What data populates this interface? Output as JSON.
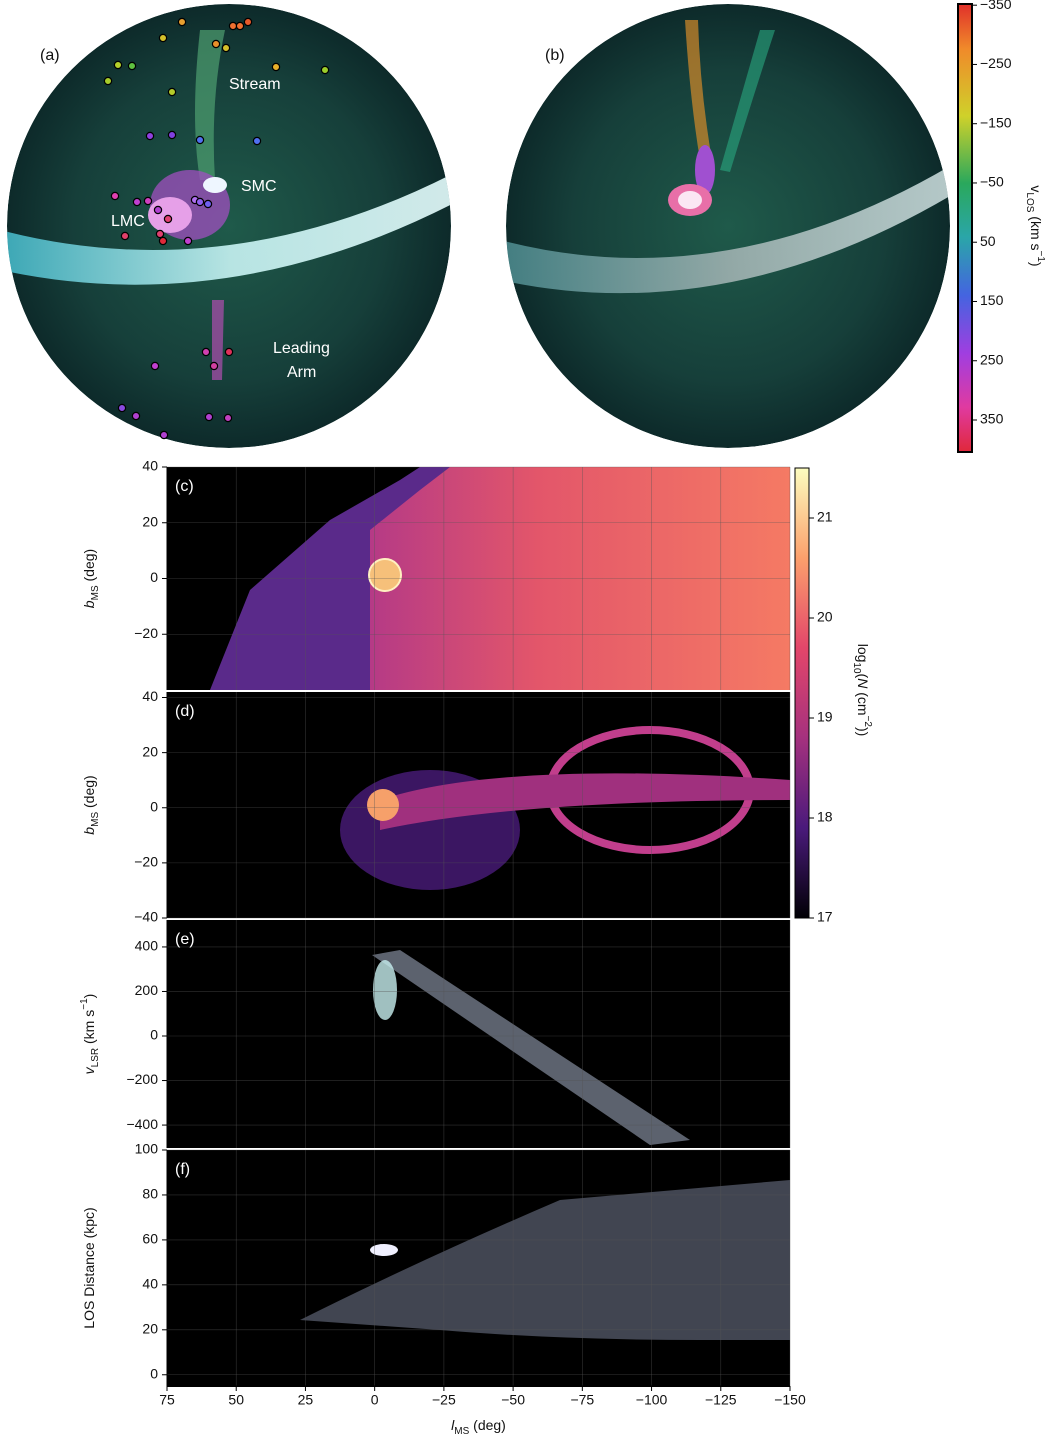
{
  "chart_data": [
    {
      "type": "sky",
      "panel": "(a)",
      "labels": [
        "Stream",
        "SMC",
        "LMC",
        "Leading",
        "Arm"
      ]
    },
    {
      "type": "sky",
      "panel": "(b)"
    },
    {
      "type": "colorbar",
      "colormap": "velocity",
      "ylim": [
        -352,
        404
      ],
      "yticks": [
        {
          "value": -350,
          "label": "−350"
        },
        {
          "value": -250,
          "label": "−250"
        },
        {
          "value": -150,
          "label": "−150"
        },
        {
          "value": -50,
          "label": "−50"
        },
        50,
        150,
        250,
        350
      ],
      "label": [
        {
          "text": "v",
          "style": "normal"
        },
        {
          "text": "LOS",
          "style": "sub"
        },
        {
          "text": "   (km s",
          "style": "normal"
        },
        {
          "text": "−1",
          "style": "sup"
        },
        {
          "text": ")",
          "style": "normal"
        }
      ]
    },
    {
      "type": "colorbar",
      "colormap": "magma",
      "ylim": [
        17,
        21.5
      ],
      "yticks": [
        17,
        18,
        19,
        20,
        21
      ],
      "label": [
        {
          "text": "log",
          "style": "normal"
        },
        {
          "text": "10",
          "style": "sub"
        },
        {
          "text": "(",
          "style": "normal"
        },
        {
          "text": "N",
          "style": "italic"
        },
        {
          "text": " (cm",
          "style": "normal"
        },
        {
          "text": "−2",
          "style": "sup"
        },
        {
          "text": "))",
          "style": "normal"
        }
      ]
    },
    {
      "type": "map",
      "panel": "(c)",
      "xlim": [
        75,
        -150
      ],
      "xticks": [
        75,
        50,
        25,
        0,
        -25,
        -50,
        -75,
        -100,
        -125,
        -150
      ],
      "ylim": [
        -40,
        40
      ],
      "yticks": [
        {
          "value": -20,
          "label": "−20"
        },
        0,
        20,
        40
      ],
      "grid": true,
      "ylabel": [
        {
          "text": "b",
          "style": "italic"
        },
        {
          "text": "MS",
          "style": "sub"
        },
        {
          "text": " (deg)",
          "style": "normal"
        }
      ]
    },
    {
      "type": "map",
      "panel": "(d)",
      "xlim": [
        75,
        -150
      ],
      "xticks": [
        75,
        50,
        25,
        0,
        -25,
        -50,
        -75,
        -100,
        -125,
        -150
      ],
      "ylim": [
        -40,
        42
      ],
      "yticks": [
        {
          "value": -40,
          "label": "−40"
        },
        {
          "value": -20,
          "label": "−20"
        },
        0,
        20,
        40
      ],
      "grid": true,
      "ylabel": [
        {
          "text": "b",
          "style": "italic"
        },
        {
          "text": "MS",
          "style": "sub"
        },
        {
          "text": " (deg)",
          "style": "normal"
        }
      ]
    },
    {
      "type": "map",
      "panel": "(e)",
      "xlim": [
        75,
        -150
      ],
      "xticks": [
        75,
        50,
        25,
        0,
        -25,
        -50,
        -75,
        -100,
        -125,
        -150
      ],
      "ylim": [
        -503,
        521
      ],
      "yticks": [
        {
          "value": -400,
          "label": "−400"
        },
        {
          "value": -200,
          "label": "−200"
        },
        0,
        200,
        400
      ],
      "grid": true,
      "ylabel": [
        {
          "text": "v",
          "style": "italic"
        },
        {
          "text": "LSR",
          "style": "sub"
        },
        {
          "text": " (km s",
          "style": "normal"
        },
        {
          "text": "−1",
          "style": "sup"
        },
        {
          "text": ")",
          "style": "normal"
        }
      ]
    },
    {
      "type": "map",
      "panel": "(f)",
      "xlim": [
        75,
        -150
      ],
      "xticks": [
        75,
        50,
        25,
        0,
        {
          "value": -25,
          "label": "−25"
        },
        {
          "value": -50,
          "label": "−50"
        },
        {
          "value": -75,
          "label": "−75"
        },
        {
          "value": -100,
          "label": "−100"
        },
        {
          "value": -125,
          "label": "−125"
        },
        {
          "value": -150,
          "label": "−150"
        }
      ],
      "ylim": [
        -5,
        100
      ],
      "yticks": [
        0,
        20,
        40,
        60,
        80,
        100
      ],
      "grid": true,
      "ylabel": [
        {
          "text": "LOS Distance (kpc)",
          "style": "normal"
        }
      ],
      "xlabel": [
        {
          "text": "l",
          "style": "italic"
        },
        {
          "text": "MS",
          "style": "sub"
        },
        {
          "text": " (deg)",
          "style": "normal"
        }
      ]
    }
  ]
}
